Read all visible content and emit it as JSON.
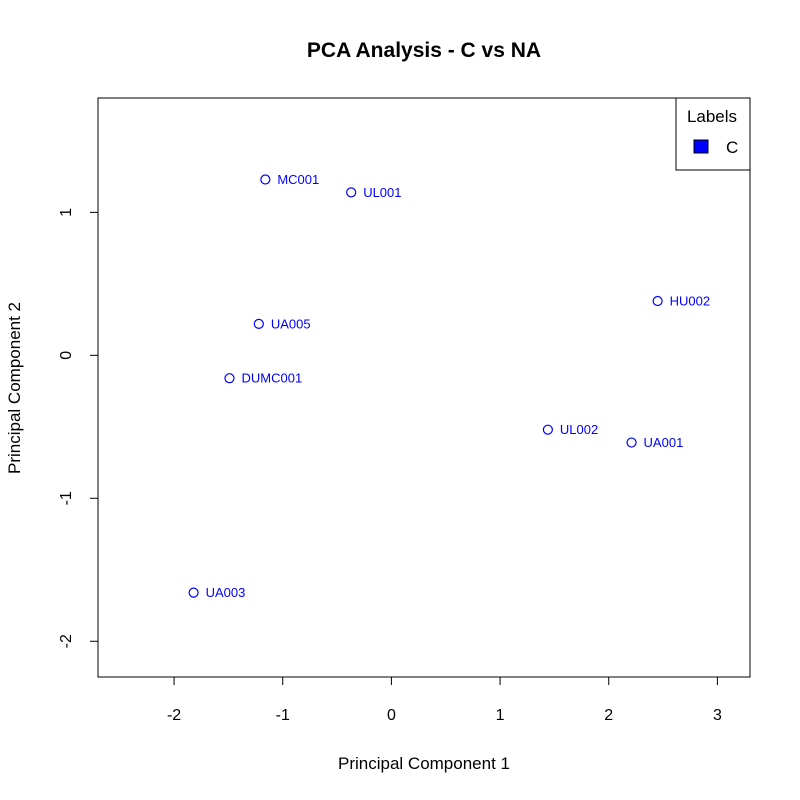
{
  "chart_data": {
    "type": "scatter",
    "title": "PCA Analysis - C vs NA",
    "xlabel": "Principal Component 1",
    "ylabel": "Principal Component 2",
    "xlim": [
      -2.7,
      3.3
    ],
    "ylim": [
      -2.25,
      1.8
    ],
    "xticks": [
      -2,
      -1,
      0,
      1,
      2,
      3
    ],
    "yticks": [
      -2,
      -1,
      0,
      1
    ],
    "grid": false,
    "legend": {
      "title": "Labels",
      "position": "top-right",
      "entries": [
        {
          "label": "C",
          "color": "#0000ff"
        }
      ]
    },
    "series": [
      {
        "name": "C",
        "color": "#0000ff",
        "points": [
          {
            "label": "MC001",
            "x": -1.16,
            "y": 1.23
          },
          {
            "label": "UL001",
            "x": -0.37,
            "y": 1.14
          },
          {
            "label": "HU002",
            "x": 2.45,
            "y": 0.38
          },
          {
            "label": "UA005",
            "x": -1.22,
            "y": 0.22
          },
          {
            "label": "DUMC001",
            "x": -1.49,
            "y": -0.16
          },
          {
            "label": "UL002",
            "x": 1.44,
            "y": -0.52
          },
          {
            "label": "UA001",
            "x": 2.21,
            "y": -0.61
          },
          {
            "label": "UA003",
            "x": -1.82,
            "y": -1.66
          }
        ]
      }
    ]
  }
}
